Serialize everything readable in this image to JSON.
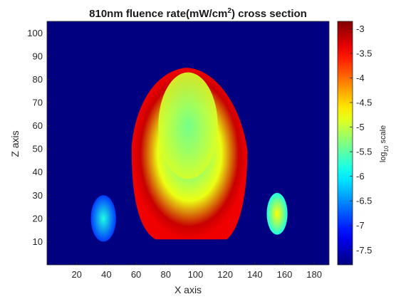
{
  "chart_data": {
    "type": "heatmap",
    "title": "810nm fluence rate(mW/cm",
    "title_superscript": "2",
    "title_suffix": ") cross section",
    "xlabel": "X axis",
    "ylabel": "Z axis",
    "xlim": [
      0,
      190
    ],
    "ylim": [
      0,
      105
    ],
    "xticks": [
      20,
      40,
      60,
      80,
      100,
      120,
      140,
      160,
      180
    ],
    "yticks": [
      10,
      20,
      30,
      40,
      50,
      60,
      70,
      80,
      90,
      100
    ],
    "colorbar": {
      "label": "log",
      "label_subscript": "10",
      "label_suffix": " scale",
      "range": [
        -7.8,
        -2.85
      ],
      "ticks": [
        -7.5,
        -7,
        -6.5,
        -6,
        -5.5,
        -5,
        -4.5,
        -4,
        -3.5,
        -3
      ],
      "tick_labels": [
        "-7.5",
        "-7",
        "-6.5",
        "-6",
        "-5.5",
        "-5",
        "-4.5",
        "-4",
        "-3.5",
        "-3"
      ],
      "colormap": "jet"
    },
    "background_value": -7.8,
    "regions": [
      {
        "name": "head outer",
        "center": [
          97,
          47
        ],
        "radii": [
          40,
          38
        ],
        "value_edge": -3.4,
        "value_center": -5.6
      },
      {
        "name": "head inner",
        "center": [
          95,
          60
        ],
        "radii": [
          20,
          23
        ],
        "value": -5.2
      },
      {
        "name": "left blob",
        "center": [
          38,
          20
        ],
        "radii": [
          8.5,
          10
        ],
        "value": -6.4
      },
      {
        "name": "right blob",
        "center": [
          155,
          22
        ],
        "radii": [
          7,
          9
        ],
        "value": -5.3
      }
    ]
  },
  "colors": {
    "background": "#00008f",
    "axis": "#262626",
    "page": "#ffffff"
  }
}
